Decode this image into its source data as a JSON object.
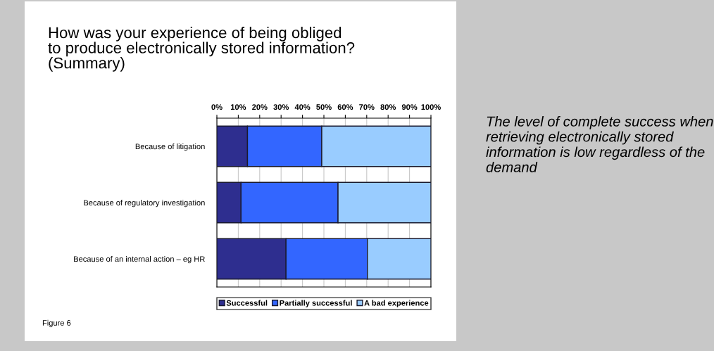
{
  "chart_data": {
    "type": "bar",
    "orientation": "horizontal",
    "stacked": true,
    "title": "How was your experience of being obliged\nto produce electronically stored information?\n(Summary)",
    "categories": [
      "Because of litigation",
      "Because of regulatory investigation",
      "Because of an internal action – eg HR"
    ],
    "series": [
      {
        "name": "Successful",
        "color": "#2e2e8f",
        "values": [
          14.3,
          11.3,
          32.3
        ]
      },
      {
        "name": "Partially successful",
        "color": "#3366ff",
        "values": [
          34.7,
          45.3,
          38.0
        ]
      },
      {
        "name": "A bad experience",
        "color": "#99ccff",
        "values": [
          51.0,
          43.4,
          29.7
        ]
      }
    ],
    "xlim": [
      0,
      100
    ],
    "xticks": [
      {
        "value": 0,
        "label": "0%"
      },
      {
        "value": 10,
        "label": "10%"
      },
      {
        "value": 20,
        "label": "20%"
      },
      {
        "value": 30,
        "label": "30%"
      },
      {
        "value": 40,
        "label": "40%"
      },
      {
        "value": 50,
        "label": "50%"
      },
      {
        "value": 60,
        "label": "60%"
      },
      {
        "value": 70,
        "label": "70%"
      },
      {
        "value": 80,
        "label": "80%"
      },
      {
        "value": 90,
        "label": "90%"
      },
      {
        "value": 100,
        "label": "100%"
      }
    ],
    "grid": "x",
    "legend": "bottom",
    "annotations": [
      "The level of complete success when retrieving electronically stored information is low regardless of the demand",
      "Figure 6"
    ]
  }
}
